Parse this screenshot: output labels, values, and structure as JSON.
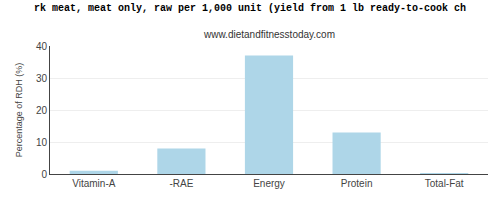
{
  "chart_data": {
    "type": "bar",
    "title": "rk meat, meat only, raw per 1,000 unit (yield from 1 lb ready-to-cook ch",
    "subtitle": "www.dietandfitnesstoday.com",
    "categories": [
      "Vitamin-A",
      "-RAE",
      "Energy",
      "Protein",
      "Total-Fat"
    ],
    "values": [
      1.0,
      8.0,
      37.0,
      13.0,
      0.3
    ],
    "color": "#aed6e8",
    "ylabel": "Percentage of RDH (%)",
    "ylim": [
      0,
      40
    ],
    "yticks": [
      0,
      10,
      20,
      30,
      40
    ],
    "grid": true
  }
}
